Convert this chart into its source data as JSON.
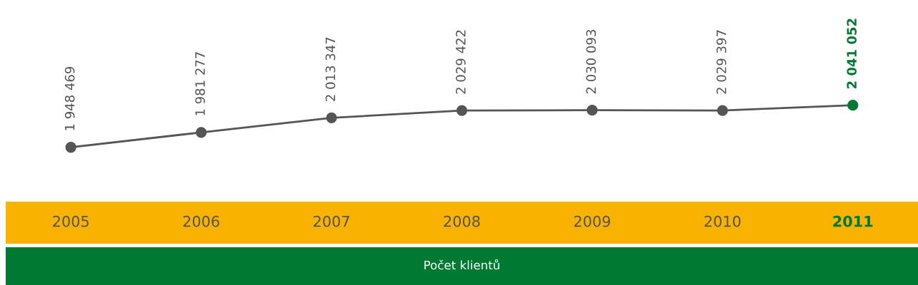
{
  "chart_data": {
    "type": "line",
    "title": "Počet klientů",
    "categories": [
      "2005",
      "2006",
      "2007",
      "2008",
      "2009",
      "2010",
      "2011"
    ],
    "series": [
      {
        "color": "#555555",
        "colors": [
          "#555555",
          "#555555",
          "#555555",
          "#555555",
          "#555555",
          "#555555",
          "#007a33"
        ],
        "values": [
          1948469,
          1981277,
          2013347,
          2029422,
          2030093,
          2029397,
          2041052
        ],
        "value_labels": [
          "1 948 469",
          "1 981 277",
          "2 013 347",
          "2 029 422",
          "2 030 093",
          "2 029 397",
          "2 041 052"
        ]
      }
    ],
    "marker": "circle",
    "line_style": "solid"
  }
}
